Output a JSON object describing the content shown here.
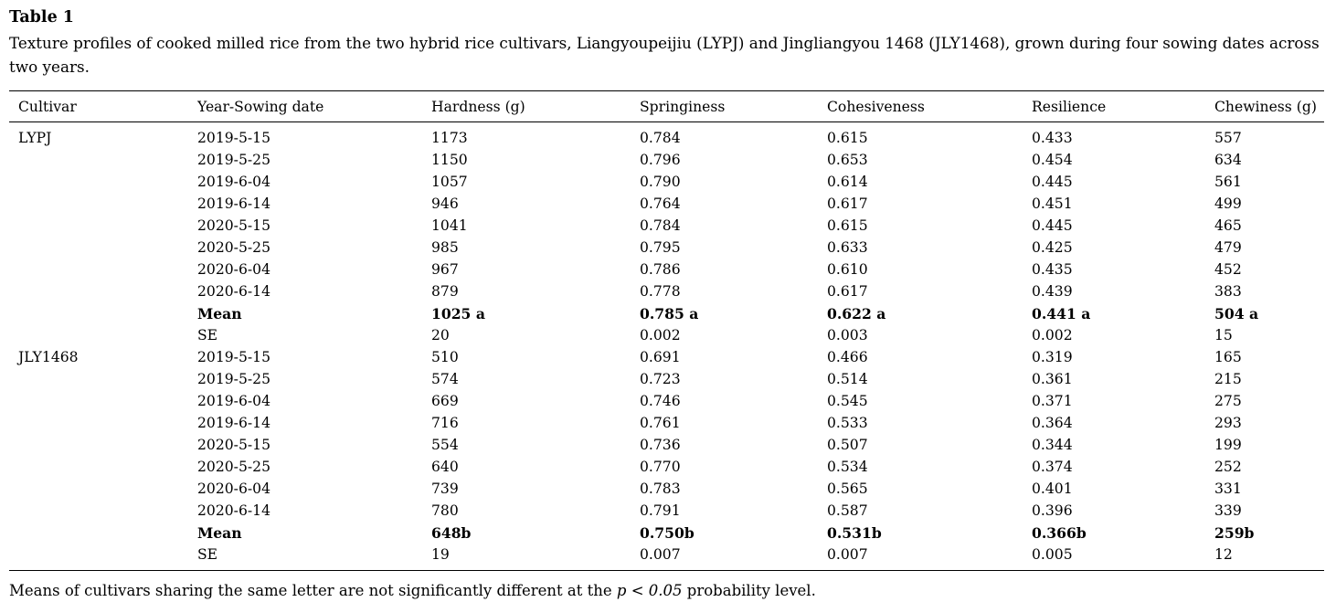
{
  "page": {
    "title": "Table 1",
    "caption": "Texture profiles of cooked milled rice from the two hybrid rice cultivars, Liangyoupeijiu (LYPJ) and Jingliangyou 1468 (JLY1468), grown during four sowing dates across two years.",
    "footnote_prefix": "Means of cultivars sharing the same letter are not significantly different at the ",
    "footnote_italic": "p < 0.05",
    "footnote_suffix": " probability level."
  },
  "chart_data": {
    "type": "table",
    "columns": [
      "Cultivar",
      "Year-Sowing date",
      "Hardness (g)",
      "Springiness",
      "Cohesiveness",
      "Resilience",
      "Chewiness (g)"
    ],
    "rows": [
      {
        "cells": [
          "LYPJ",
          "2019-5-15",
          "1173",
          "0.784",
          "0.615",
          "0.433",
          "557"
        ],
        "bold": false
      },
      {
        "cells": [
          "",
          "2019-5-25",
          "1150",
          "0.796",
          "0.653",
          "0.454",
          "634"
        ],
        "bold": false
      },
      {
        "cells": [
          "",
          "2019-6-04",
          "1057",
          "0.790",
          "0.614",
          "0.445",
          "561"
        ],
        "bold": false
      },
      {
        "cells": [
          "",
          "2019-6-14",
          "946",
          "0.764",
          "0.617",
          "0.451",
          "499"
        ],
        "bold": false
      },
      {
        "cells": [
          "",
          "2020-5-15",
          "1041",
          "0.784",
          "0.615",
          "0.445",
          "465"
        ],
        "bold": false
      },
      {
        "cells": [
          "",
          "2020-5-25",
          "985",
          "0.795",
          "0.633",
          "0.425",
          "479"
        ],
        "bold": false
      },
      {
        "cells": [
          "",
          "2020-6-04",
          "967",
          "0.786",
          "0.610",
          "0.435",
          "452"
        ],
        "bold": false
      },
      {
        "cells": [
          "",
          "2020-6-14",
          "879",
          "0.778",
          "0.617",
          "0.439",
          "383"
        ],
        "bold": false
      },
      {
        "cells": [
          "",
          "Mean",
          "1025 a",
          "0.785 a",
          "0.622 a",
          "0.441 a",
          "504 a"
        ],
        "bold": true
      },
      {
        "cells": [
          "",
          "SE",
          "20",
          "0.002",
          "0.003",
          "0.002",
          "15"
        ],
        "bold": false
      },
      {
        "cells": [
          "JLY1468",
          "2019-5-15",
          "510",
          "0.691",
          "0.466",
          "0.319",
          "165"
        ],
        "bold": false
      },
      {
        "cells": [
          "",
          "2019-5-25",
          "574",
          "0.723",
          "0.514",
          "0.361",
          "215"
        ],
        "bold": false
      },
      {
        "cells": [
          "",
          "2019-6-04",
          "669",
          "0.746",
          "0.545",
          "0.371",
          "275"
        ],
        "bold": false
      },
      {
        "cells": [
          "",
          "2019-6-14",
          "716",
          "0.761",
          "0.533",
          "0.364",
          "293"
        ],
        "bold": false
      },
      {
        "cells": [
          "",
          "2020-5-15",
          "554",
          "0.736",
          "0.507",
          "0.344",
          "199"
        ],
        "bold": false
      },
      {
        "cells": [
          "",
          "2020-5-25",
          "640",
          "0.770",
          "0.534",
          "0.374",
          "252"
        ],
        "bold": false
      },
      {
        "cells": [
          "",
          "2020-6-04",
          "739",
          "0.783",
          "0.565",
          "0.401",
          "331"
        ],
        "bold": false
      },
      {
        "cells": [
          "",
          "2020-6-14",
          "780",
          "0.791",
          "0.587",
          "0.396",
          "339"
        ],
        "bold": false
      },
      {
        "cells": [
          "",
          "Mean",
          "648b",
          "0.750b",
          "0.531b",
          "0.366b",
          "259b"
        ],
        "bold": true
      },
      {
        "cells": [
          "",
          "SE",
          "19",
          "0.007",
          "0.007",
          "0.005",
          "12"
        ],
        "bold": false
      }
    ]
  }
}
